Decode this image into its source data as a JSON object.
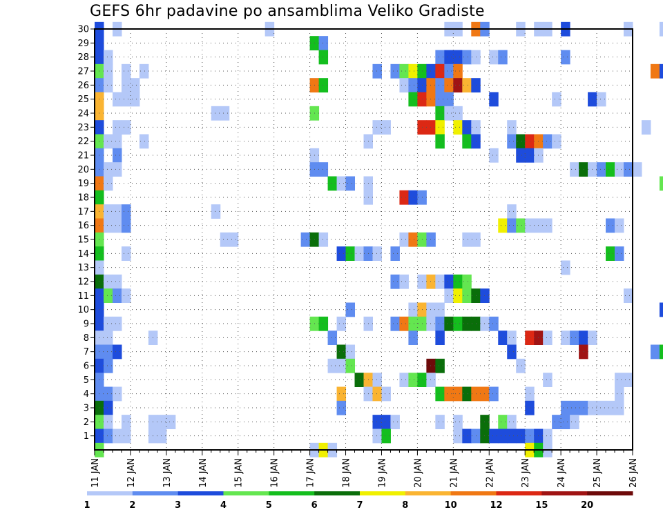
{
  "chart_data": {
    "type": "heatmap",
    "title": "GEFS 6hr padavine po ansamblima Veliko Gradiste",
    "y_tick_labels": [
      "1",
      "2",
      "3",
      "4",
      "5",
      "6",
      "7",
      "8",
      "9",
      "10",
      "11",
      "12",
      "13",
      "14",
      "15",
      "16",
      "17",
      "18",
      "19",
      "20",
      "21",
      "22",
      "23",
      "24",
      "25",
      "26",
      "27",
      "28",
      "29",
      "30"
    ],
    "x_tick_labels": [
      "11 JAN",
      "12 JAN",
      "13 JAN",
      "14 JAN",
      "15 JAN",
      "16 JAN",
      "17 JAN",
      "18 JAN",
      "19 JAN",
      "20 JAN",
      "21 JAN",
      "22 JAN",
      "23 JAN",
      "24 JAN",
      "25 JAN",
      "26 JAN"
    ],
    "xlim": [
      "11 JAN",
      "26 JAN"
    ],
    "ylim": [
      0,
      30
    ],
    "grid": true,
    "colorbar": {
      "placement": "bottom",
      "labels": [
        "1",
        "2",
        "3",
        "4",
        "5",
        "6",
        "7",
        "8",
        "10",
        "12",
        "15",
        "20"
      ],
      "colors": [
        "#b4c8f8",
        "#5f8cf0",
        "#1e4cdc",
        "#64e650",
        "#14be1e",
        "#0a6e0a",
        "#f0f000",
        "#fab432",
        "#f07814",
        "#dc2814",
        "#a01414",
        "#6e0a0a"
      ]
    },
    "cells": [
      [
        0,
        30,
        3
      ],
      [
        2,
        30,
        1
      ],
      [
        19,
        30,
        1
      ],
      [
        39,
        30,
        1
      ],
      [
        40,
        30,
        1
      ],
      [
        42,
        30,
        10
      ],
      [
        43,
        30,
        2
      ],
      [
        47,
        30,
        1
      ],
      [
        49,
        30,
        1
      ],
      [
        50,
        30,
        1
      ],
      [
        52,
        30,
        3
      ],
      [
        59,
        30,
        1
      ],
      [
        63,
        30,
        1
      ],
      [
        0,
        29,
        3
      ],
      [
        24,
        29,
        5
      ],
      [
        25,
        29,
        2
      ],
      [
        0,
        28,
        3
      ],
      [
        1,
        28,
        1
      ],
      [
        25,
        28,
        5
      ],
      [
        38,
        28,
        2
      ],
      [
        39,
        28,
        3
      ],
      [
        40,
        28,
        3
      ],
      [
        41,
        28,
        2
      ],
      [
        42,
        28,
        1
      ],
      [
        44,
        28,
        1
      ],
      [
        45,
        28,
        2
      ],
      [
        52,
        28,
        2
      ],
      [
        0,
        27,
        4
      ],
      [
        1,
        27,
        1
      ],
      [
        3,
        27,
        1
      ],
      [
        5,
        27,
        1
      ],
      [
        31,
        27,
        2
      ],
      [
        33,
        27,
        2
      ],
      [
        34,
        27,
        4
      ],
      [
        35,
        27,
        7
      ],
      [
        36,
        27,
        5
      ],
      [
        37,
        27,
        3
      ],
      [
        38,
        27,
        12
      ],
      [
        39,
        27,
        2
      ],
      [
        40,
        27,
        10
      ],
      [
        62,
        27,
        10
      ],
      [
        63,
        27,
        3
      ],
      [
        0,
        26,
        2
      ],
      [
        1,
        26,
        1
      ],
      [
        3,
        26,
        1
      ],
      [
        4,
        26,
        1
      ],
      [
        24,
        26,
        10
      ],
      [
        25,
        26,
        5
      ],
      [
        34,
        26,
        1
      ],
      [
        35,
        26,
        2
      ],
      [
        36,
        26,
        3
      ],
      [
        37,
        26,
        10
      ],
      [
        38,
        26,
        2
      ],
      [
        39,
        26,
        10
      ],
      [
        40,
        26,
        15
      ],
      [
        41,
        26,
        8
      ],
      [
        42,
        26,
        3
      ],
      [
        64,
        26,
        1
      ],
      [
        65,
        26,
        2
      ],
      [
        0,
        25,
        8
      ],
      [
        2,
        25,
        1
      ],
      [
        3,
        25,
        1
      ],
      [
        4,
        25,
        1
      ],
      [
        35,
        25,
        5
      ],
      [
        36,
        25,
        12
      ],
      [
        37,
        25,
        10
      ],
      [
        38,
        25,
        2
      ],
      [
        39,
        25,
        2
      ],
      [
        44,
        25,
        3
      ],
      [
        51,
        25,
        1
      ],
      [
        55,
        25,
        3
      ],
      [
        56,
        25,
        1
      ],
      [
        0,
        24,
        8
      ],
      [
        13,
        24,
        1
      ],
      [
        14,
        24,
        1
      ],
      [
        24,
        24,
        4
      ],
      [
        38,
        24,
        5
      ],
      [
        39,
        24,
        1
      ],
      [
        40,
        24,
        1
      ],
      [
        64,
        24,
        2
      ],
      [
        0,
        23,
        3
      ],
      [
        2,
        23,
        1
      ],
      [
        3,
        23,
        1
      ],
      [
        31,
        23,
        1
      ],
      [
        32,
        23,
        1
      ],
      [
        36,
        23,
        12
      ],
      [
        37,
        23,
        12
      ],
      [
        38,
        23,
        7
      ],
      [
        40,
        23,
        7
      ],
      [
        41,
        23,
        3
      ],
      [
        42,
        23,
        1
      ],
      [
        46,
        23,
        1
      ],
      [
        61,
        23,
        1
      ],
      [
        64,
        23,
        1
      ],
      [
        0,
        22,
        4
      ],
      [
        1,
        22,
        1
      ],
      [
        2,
        22,
        1
      ],
      [
        5,
        22,
        1
      ],
      [
        30,
        22,
        1
      ],
      [
        38,
        22,
        5
      ],
      [
        41,
        22,
        5
      ],
      [
        42,
        22,
        3
      ],
      [
        46,
        22,
        2
      ],
      [
        47,
        22,
        6
      ],
      [
        48,
        22,
        12
      ],
      [
        49,
        22,
        10
      ],
      [
        50,
        22,
        2
      ],
      [
        51,
        22,
        1
      ],
      [
        0,
        21,
        2
      ],
      [
        2,
        21,
        2
      ],
      [
        24,
        21,
        1
      ],
      [
        44,
        21,
        1
      ],
      [
        47,
        21,
        3
      ],
      [
        48,
        21,
        3
      ],
      [
        49,
        21,
        1
      ],
      [
        0,
        20,
        2
      ],
      [
        1,
        20,
        1
      ],
      [
        2,
        20,
        1
      ],
      [
        24,
        20,
        2
      ],
      [
        25,
        20,
        2
      ],
      [
        53,
        20,
        1
      ],
      [
        54,
        20,
        6
      ],
      [
        55,
        20,
        1
      ],
      [
        56,
        20,
        2
      ],
      [
        57,
        20,
        5
      ],
      [
        58,
        20,
        1
      ],
      [
        59,
        20,
        2
      ],
      [
        60,
        20,
        1
      ],
      [
        0,
        19,
        10
      ],
      [
        1,
        19,
        1
      ],
      [
        26,
        19,
        5
      ],
      [
        27,
        19,
        1
      ],
      [
        28,
        19,
        2
      ],
      [
        30,
        19,
        1
      ],
      [
        63,
        19,
        4
      ],
      [
        64,
        19,
        5
      ],
      [
        0,
        18,
        5
      ],
      [
        30,
        18,
        1
      ],
      [
        34,
        18,
        12
      ],
      [
        35,
        18,
        3
      ],
      [
        36,
        18,
        2
      ],
      [
        0,
        17,
        8
      ],
      [
        1,
        17,
        1
      ],
      [
        2,
        17,
        1
      ],
      [
        3,
        17,
        2
      ],
      [
        13,
        17,
        1
      ],
      [
        46,
        17,
        1
      ],
      [
        0,
        16,
        10
      ],
      [
        1,
        16,
        1
      ],
      [
        2,
        16,
        1
      ],
      [
        3,
        16,
        2
      ],
      [
        45,
        16,
        7
      ],
      [
        46,
        16,
        2
      ],
      [
        47,
        16,
        4
      ],
      [
        48,
        16,
        1
      ],
      [
        49,
        16,
        1
      ],
      [
        50,
        16,
        1
      ],
      [
        57,
        16,
        2
      ],
      [
        58,
        16,
        1
      ],
      [
        0,
        15,
        4
      ],
      [
        14,
        15,
        1
      ],
      [
        15,
        15,
        1
      ],
      [
        23,
        15,
        2
      ],
      [
        24,
        15,
        6
      ],
      [
        25,
        15,
        1
      ],
      [
        34,
        15,
        1
      ],
      [
        35,
        15,
        10
      ],
      [
        36,
        15,
        4
      ],
      [
        37,
        15,
        2
      ],
      [
        41,
        15,
        1
      ],
      [
        42,
        15,
        1
      ],
      [
        0,
        14,
        5
      ],
      [
        3,
        14,
        1
      ],
      [
        27,
        14,
        3
      ],
      [
        28,
        14,
        5
      ],
      [
        29,
        14,
        1
      ],
      [
        30,
        14,
        2
      ],
      [
        31,
        14,
        1
      ],
      [
        33,
        14,
        2
      ],
      [
        57,
        14,
        5
      ],
      [
        58,
        14,
        2
      ],
      [
        0,
        13,
        1
      ],
      [
        52,
        13,
        1
      ],
      [
        0,
        12,
        6
      ],
      [
        1,
        12,
        1
      ],
      [
        2,
        12,
        1
      ],
      [
        33,
        12,
        2
      ],
      [
        34,
        12,
        1
      ],
      [
        36,
        12,
        1
      ],
      [
        37,
        12,
        8
      ],
      [
        38,
        12,
        1
      ],
      [
        39,
        12,
        3
      ],
      [
        40,
        12,
        5
      ],
      [
        41,
        12,
        4
      ],
      [
        0,
        11,
        3
      ],
      [
        1,
        11,
        4
      ],
      [
        2,
        11,
        2
      ],
      [
        3,
        11,
        1
      ],
      [
        39,
        11,
        1
      ],
      [
        40,
        11,
        7
      ],
      [
        41,
        11,
        4
      ],
      [
        42,
        11,
        6
      ],
      [
        43,
        11,
        3
      ],
      [
        59,
        11,
        1
      ],
      [
        0,
        10,
        3
      ],
      [
        28,
        10,
        2
      ],
      [
        35,
        10,
        1
      ],
      [
        36,
        10,
        8
      ],
      [
        37,
        10,
        1
      ],
      [
        38,
        10,
        1
      ],
      [
        63,
        10,
        3
      ],
      [
        65,
        10,
        7
      ],
      [
        0,
        9,
        3
      ],
      [
        1,
        9,
        1
      ],
      [
        2,
        9,
        1
      ],
      [
        24,
        9,
        4
      ],
      [
        25,
        9,
        5
      ],
      [
        27,
        9,
        1
      ],
      [
        30,
        9,
        1
      ],
      [
        33,
        9,
        2
      ],
      [
        34,
        9,
        10
      ],
      [
        35,
        9,
        4
      ],
      [
        36,
        9,
        4
      ],
      [
        37,
        9,
        1
      ],
      [
        38,
        9,
        2
      ],
      [
        39,
        9,
        6
      ],
      [
        40,
        9,
        5
      ],
      [
        41,
        9,
        6
      ],
      [
        42,
        9,
        6
      ],
      [
        43,
        9,
        1
      ],
      [
        44,
        9,
        2
      ],
      [
        0,
        8,
        1
      ],
      [
        1,
        8,
        1
      ],
      [
        6,
        8,
        1
      ],
      [
        26,
        8,
        2
      ],
      [
        35,
        8,
        2
      ],
      [
        38,
        8,
        3
      ],
      [
        45,
        8,
        3
      ],
      [
        46,
        8,
        1
      ],
      [
        48,
        8,
        12
      ],
      [
        49,
        8,
        15
      ],
      [
        50,
        8,
        1
      ],
      [
        52,
        8,
        1
      ],
      [
        53,
        8,
        2
      ],
      [
        54,
        8,
        3
      ],
      [
        55,
        8,
        1
      ],
      [
        0,
        7,
        2
      ],
      [
        1,
        7,
        2
      ],
      [
        2,
        7,
        3
      ],
      [
        27,
        7,
        6
      ],
      [
        28,
        7,
        1
      ],
      [
        46,
        7,
        3
      ],
      [
        54,
        7,
        15
      ],
      [
        62,
        7,
        2
      ],
      [
        63,
        7,
        5
      ],
      [
        64,
        7,
        1
      ],
      [
        0,
        6,
        3
      ],
      [
        1,
        6,
        2
      ],
      [
        26,
        6,
        1
      ],
      [
        27,
        6,
        1
      ],
      [
        28,
        6,
        4
      ],
      [
        37,
        6,
        20
      ],
      [
        38,
        6,
        6
      ],
      [
        47,
        6,
        1
      ],
      [
        0,
        5,
        2
      ],
      [
        29,
        5,
        6
      ],
      [
        30,
        5,
        8
      ],
      [
        31,
        5,
        1
      ],
      [
        34,
        5,
        1
      ],
      [
        35,
        5,
        4
      ],
      [
        36,
        5,
        5
      ],
      [
        37,
        5,
        1
      ],
      [
        50,
        5,
        1
      ],
      [
        58,
        5,
        1
      ],
      [
        59,
        5,
        1
      ],
      [
        0,
        4,
        2
      ],
      [
        1,
        4,
        2
      ],
      [
        2,
        4,
        1
      ],
      [
        27,
        4,
        8
      ],
      [
        30,
        4,
        1
      ],
      [
        31,
        4,
        8
      ],
      [
        32,
        4,
        1
      ],
      [
        38,
        4,
        5
      ],
      [
        39,
        4,
        10
      ],
      [
        40,
        4,
        10
      ],
      [
        41,
        4,
        6
      ],
      [
        42,
        4,
        10
      ],
      [
        43,
        4,
        10
      ],
      [
        44,
        4,
        2
      ],
      [
        48,
        4,
        1
      ],
      [
        58,
        4,
        1
      ],
      [
        0,
        3,
        6
      ],
      [
        1,
        3,
        3
      ],
      [
        27,
        3,
        2
      ],
      [
        48,
        3,
        3
      ],
      [
        52,
        3,
        2
      ],
      [
        53,
        3,
        2
      ],
      [
        54,
        3,
        2
      ],
      [
        55,
        3,
        1
      ],
      [
        56,
        3,
        1
      ],
      [
        57,
        3,
        1
      ],
      [
        58,
        3,
        1
      ],
      [
        0,
        2,
        4
      ],
      [
        1,
        2,
        1
      ],
      [
        3,
        2,
        1
      ],
      [
        6,
        2,
        1
      ],
      [
        7,
        2,
        1
      ],
      [
        8,
        2,
        1
      ],
      [
        31,
        2,
        3
      ],
      [
        32,
        2,
        3
      ],
      [
        33,
        2,
        1
      ],
      [
        38,
        2,
        1
      ],
      [
        40,
        2,
        1
      ],
      [
        43,
        2,
        6
      ],
      [
        45,
        2,
        4
      ],
      [
        46,
        2,
        1
      ],
      [
        51,
        2,
        2
      ],
      [
        52,
        2,
        2
      ],
      [
        53,
        2,
        1
      ],
      [
        0,
        1,
        3
      ],
      [
        1,
        1,
        2
      ],
      [
        2,
        1,
        1
      ],
      [
        3,
        1,
        1
      ],
      [
        6,
        1,
        1
      ],
      [
        7,
        1,
        1
      ],
      [
        31,
        1,
        1
      ],
      [
        32,
        1,
        5
      ],
      [
        40,
        1,
        1
      ],
      [
        41,
        1,
        3
      ],
      [
        42,
        1,
        2
      ],
      [
        43,
        1,
        6
      ],
      [
        44,
        1,
        3
      ],
      [
        45,
        1,
        3
      ],
      [
        46,
        1,
        3
      ],
      [
        47,
        1,
        3
      ],
      [
        48,
        1,
        2
      ],
      [
        49,
        1,
        3
      ],
      [
        50,
        1,
        1
      ],
      [
        64,
        1,
        1
      ],
      [
        0,
        0,
        4
      ],
      [
        24,
        0,
        1
      ],
      [
        25,
        0,
        7
      ],
      [
        26,
        0,
        1
      ],
      [
        48,
        0,
        7
      ],
      [
        49,
        0,
        5
      ],
      [
        50,
        0,
        1
      ]
    ]
  }
}
